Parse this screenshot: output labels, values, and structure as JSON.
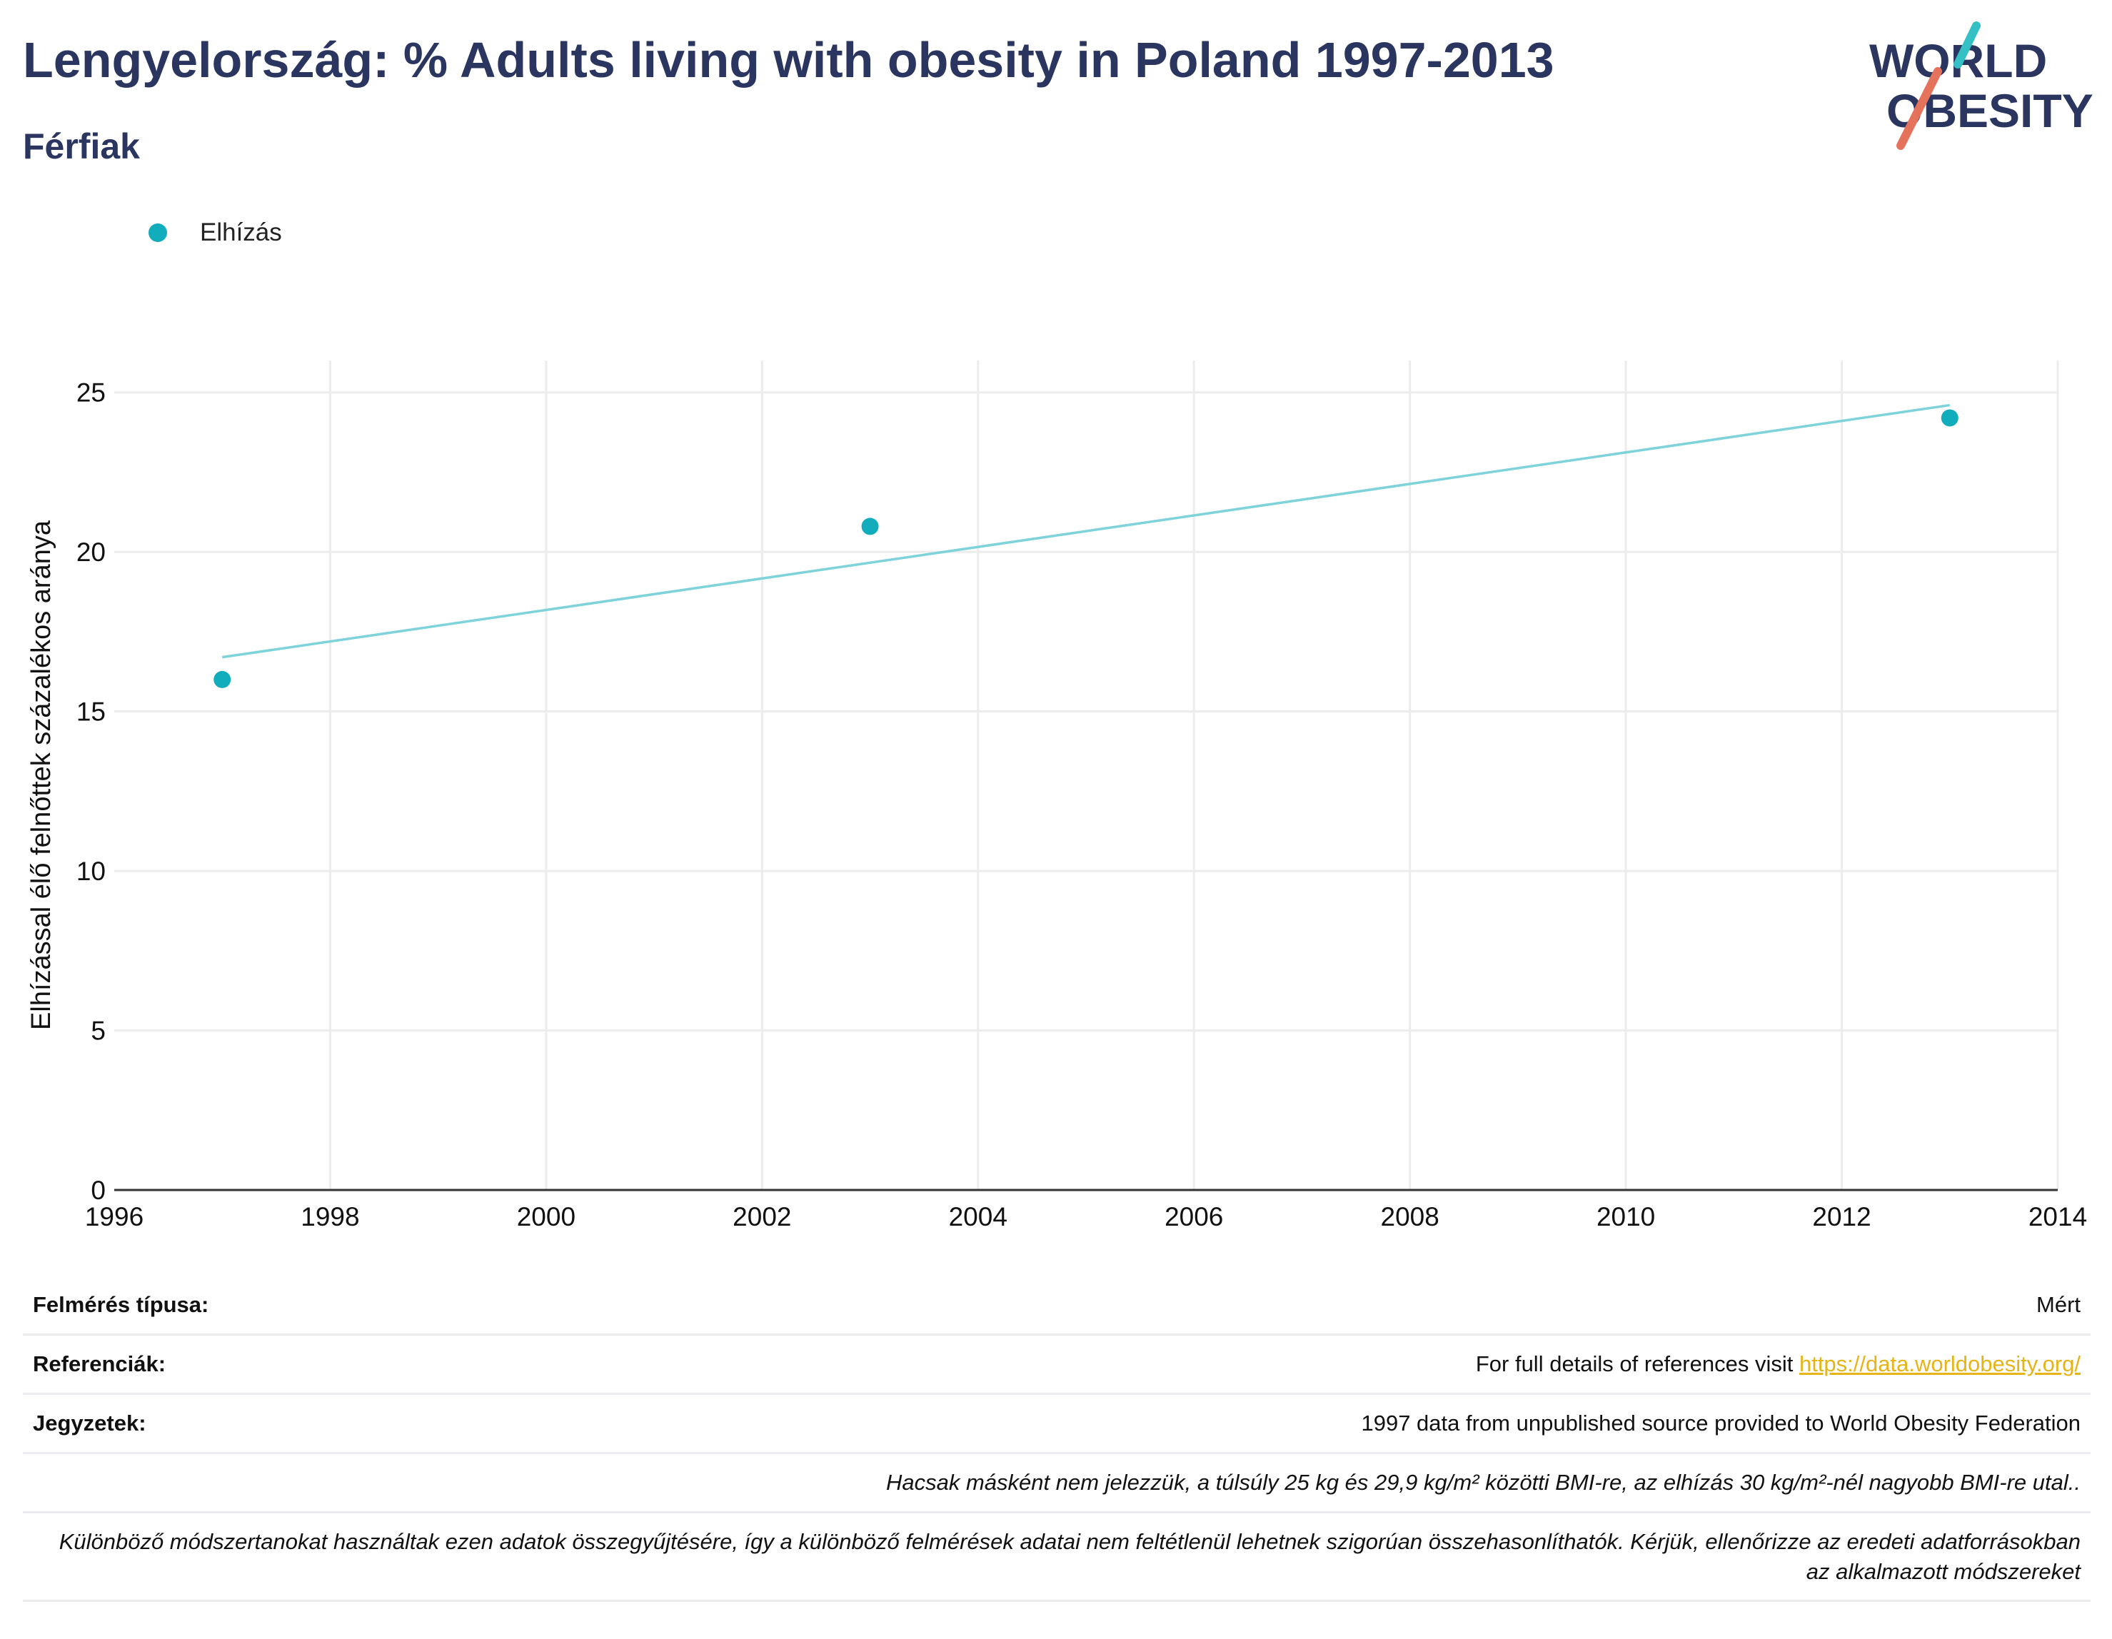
{
  "header": {
    "title": "Lengyelország: % Adults living with obesity in Poland 1997-2013",
    "subtitle": "Férfiak",
    "logo": {
      "line1": "WORLD",
      "line2": "OBESITY"
    }
  },
  "legend": {
    "label": "Elhízás"
  },
  "colors": {
    "series": "#12adbd",
    "trend": "#7dd3d9",
    "title": "#2a3560",
    "link": "#e6b417",
    "logo_teal": "#34c0c4",
    "logo_coral": "#e5735b"
  },
  "chart_data": {
    "type": "scatter",
    "title": "Lengyelország: % Adults living with obesity in Poland 1997-2013",
    "subtitle": "Férfiak",
    "xlabel": "",
    "ylabel": "Elhízással élő felnőttek százalékos aránya",
    "xlim": [
      1996,
      2014
    ],
    "ylim": [
      0,
      26
    ],
    "xticks": [
      "1996",
      "1998",
      "2000",
      "2002",
      "2004",
      "2006",
      "2008",
      "2010",
      "2012",
      "2014"
    ],
    "yticks": [
      "0",
      "5",
      "10",
      "15",
      "20",
      "25"
    ],
    "grid": true,
    "legend_position": "top-left",
    "series": [
      {
        "name": "Elhízás",
        "x": [
          1997,
          2003,
          2013
        ],
        "y": [
          16.0,
          20.8,
          24.2
        ]
      }
    ],
    "trendline": {
      "x": [
        1997,
        2013
      ],
      "y": [
        16.7,
        24.6
      ]
    }
  },
  "footer": {
    "survey_label": "Felmérés típusa:",
    "survey_value": "Mért",
    "references_label": "Referenciák:",
    "references_text": "For full details of references visit ",
    "references_link": "https://data.worldobesity.org/",
    "notes_label": "Jegyzetek:",
    "notes_value": "1997 data from unpublished source provided to World Obesity Federation",
    "note_bmi": "Hacsak másként nem jelezzük, a túlsúly 25 kg és 29,9 kg/m² közötti BMI-re, az elhízás 30 kg/m²-nél nagyobb BMI-re utal..",
    "note_methods": "Különböző módszertanokat használtak ezen adatok összegyűjtésére, így a különböző felmérések adatai nem feltétlenül lehetnek szigorúan összehasonlíthatók. Kérjük, ellenőrizze az eredeti adatforrásokban az alkalmazott módszereket"
  }
}
